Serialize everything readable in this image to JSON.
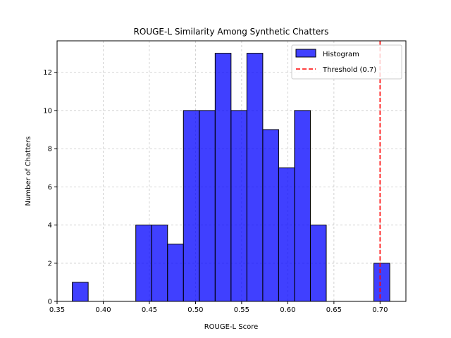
{
  "chart_data": {
    "type": "bar",
    "title": "ROUGE-L Similarity Among Synthetic Chatters",
    "xlabel": "ROUGE-L Score",
    "ylabel": "Number of Chatters",
    "xlim": [
      0.35,
      0.728
    ],
    "ylim": [
      0,
      13.65
    ],
    "x_ticks": [
      "0.35",
      "0.40",
      "0.45",
      "0.50",
      "0.55",
      "0.60",
      "0.65",
      "0.70"
    ],
    "x_tick_values": [
      0.35,
      0.4,
      0.45,
      0.5,
      0.55,
      0.6,
      0.65,
      0.7
    ],
    "y_ticks": [
      "0",
      "2",
      "4",
      "6",
      "8",
      "10",
      "12"
    ],
    "y_tick_values": [
      0,
      2,
      4,
      6,
      8,
      10,
      12
    ],
    "grid": true,
    "legend_position": "top-right",
    "series": [
      {
        "name": "Histogram",
        "color": "#0000ff",
        "bins": [
          {
            "start": 0.3665,
            "end": 0.3837,
            "count": 1
          },
          {
            "start": 0.4353,
            "end": 0.4525,
            "count": 4
          },
          {
            "start": 0.4525,
            "end": 0.4697,
            "count": 4
          },
          {
            "start": 0.4697,
            "end": 0.4869,
            "count": 3
          },
          {
            "start": 0.4869,
            "end": 0.5041,
            "count": 10
          },
          {
            "start": 0.5041,
            "end": 0.5213,
            "count": 10
          },
          {
            "start": 0.5213,
            "end": 0.5385,
            "count": 13
          },
          {
            "start": 0.5385,
            "end": 0.5557,
            "count": 10
          },
          {
            "start": 0.5557,
            "end": 0.5729,
            "count": 13
          },
          {
            "start": 0.5729,
            "end": 0.5901,
            "count": 9
          },
          {
            "start": 0.5901,
            "end": 0.6073,
            "count": 7
          },
          {
            "start": 0.6073,
            "end": 0.6245,
            "count": 10
          },
          {
            "start": 0.6245,
            "end": 0.6417,
            "count": 4
          },
          {
            "start": 0.6933,
            "end": 0.7105,
            "count": 2
          }
        ]
      },
      {
        "name": "Threshold (0.7)",
        "type": "vline",
        "x": 0.7,
        "color": "#ff0000",
        "style": "dashed"
      }
    ]
  }
}
